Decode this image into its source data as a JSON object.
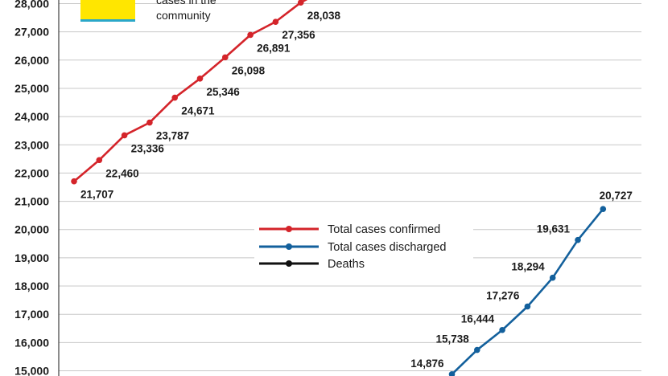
{
  "chart_data": {
    "type": "line",
    "ylim": [
      15000,
      28300
    ],
    "yticks": [
      15000,
      16000,
      17000,
      18000,
      19000,
      20000,
      21000,
      22000,
      23000,
      24000,
      25000,
      26000,
      27000,
      28000
    ],
    "ytick_labels": [
      "15,000",
      "16,000",
      "17,000",
      "18,000",
      "19,000",
      "20,000",
      "21,000",
      "22,000",
      "23,000",
      "24,000",
      "25,000",
      "26,000",
      "27,000",
      "28,000"
    ],
    "grid": true,
    "x_count": 22,
    "series": [
      {
        "name": "Total cases confirmed",
        "color": "#d4242a",
        "x": [
          0,
          1,
          2,
          3,
          4,
          5,
          6,
          7,
          8,
          9
        ],
        "values": [
          21707,
          22460,
          23336,
          23787,
          24671,
          25346,
          26098,
          26891,
          27356,
          28038
        ],
        "labels": [
          "21,707",
          "22,460",
          "23,336",
          "23,787",
          "24,671",
          "25,346",
          "26,098",
          "26,891",
          "27,356",
          "28,038"
        ]
      },
      {
        "name": "Total cases discharged",
        "color": "#13609c",
        "x": [
          15,
          16,
          17,
          18,
          19,
          20,
          21
        ],
        "values": [
          14876,
          15738,
          16444,
          17276,
          18294,
          19631,
          20727
        ],
        "labels": [
          "14,876",
          "15,738",
          "16,444",
          "17,276",
          "18,294",
          "19,631",
          "20,727"
        ]
      },
      {
        "name": "Deaths",
        "color": "#111111",
        "x": [],
        "values": [],
        "labels": []
      }
    ],
    "legend": [
      "Total cases confirmed",
      "Total cases discharged",
      "Deaths"
    ],
    "legend_position": "center-right",
    "note": {
      "lines": [
        "cases in the",
        "community"
      ],
      "swatch_color": "#ffe600",
      "swatch_border_color": "#2aa7c9"
    }
  }
}
